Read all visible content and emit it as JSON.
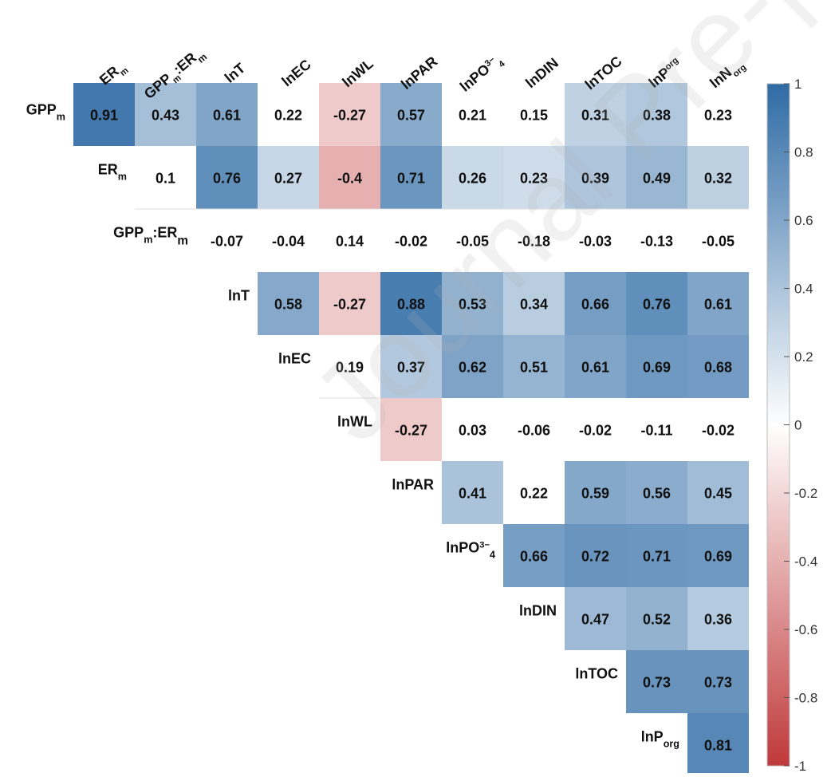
{
  "chart_data": {
    "type": "heatmap",
    "subtype": "upper-triangular correlation matrix",
    "columns": [
      {
        "base": "ER",
        "sub": "m",
        "sup": ""
      },
      {
        "base": "GPP",
        "sub": "m",
        "sup": "",
        "suffix_base": ":ER",
        "suffix_sub": "m"
      },
      {
        "base": "lnT",
        "sub": "",
        "sup": ""
      },
      {
        "base": "lnEC",
        "sub": "",
        "sup": ""
      },
      {
        "base": "lnWL",
        "sub": "",
        "sup": ""
      },
      {
        "base": "lnPAR",
        "sub": "",
        "sup": ""
      },
      {
        "base": "lnPO",
        "sub": "4",
        "sup": "3−"
      },
      {
        "base": "lnDIN",
        "sub": "",
        "sup": ""
      },
      {
        "base": "lnTOC",
        "sub": "",
        "sup": ""
      },
      {
        "base": "lnP",
        "sub": "",
        "sup": "org"
      },
      {
        "base": "lnN",
        "sub": "org",
        "sup": ""
      }
    ],
    "rows": [
      {
        "base": "GPP",
        "sub": "m"
      },
      {
        "base": "ER",
        "sub": "m"
      },
      {
        "base": "GPP",
        "sub": "m",
        "suffix_base": ":ER",
        "suffix_sub": "m"
      },
      {
        "base": "lnT",
        "sub": ""
      },
      {
        "base": "lnEC",
        "sub": ""
      },
      {
        "base": "lnWL",
        "sub": ""
      },
      {
        "base": "lnPAR",
        "sub": ""
      },
      {
        "base": "lnPO",
        "sub": "4",
        "sup": "3−"
      },
      {
        "base": "lnDIN",
        "sub": ""
      },
      {
        "base": "lnTOC",
        "sub": ""
      },
      {
        "base": "lnP",
        "sub": "org"
      }
    ],
    "values": [
      [
        0.91,
        0.43,
        0.61,
        0.22,
        -0.27,
        0.57,
        0.21,
        0.15,
        0.31,
        0.38,
        0.23
      ],
      [
        0.1,
        0.76,
        0.27,
        -0.4,
        0.71,
        0.26,
        0.23,
        0.39,
        0.49,
        0.32
      ],
      [
        -0.07,
        -0.04,
        0.14,
        -0.02,
        -0.05,
        -0.18,
        -0.03,
        -0.13,
        -0.05
      ],
      [
        0.58,
        -0.27,
        0.88,
        0.53,
        0.34,
        0.66,
        0.76,
        0.61
      ],
      [
        0.19,
        0.37,
        0.62,
        0.51,
        0.61,
        0.69,
        0.68
      ],
      [
        -0.27,
        0.03,
        -0.06,
        -0.02,
        -0.11,
        -0.02
      ],
      [
        0.41,
        0.22,
        0.59,
        0.56,
        0.45
      ],
      [
        0.66,
        0.72,
        0.71,
        0.69
      ],
      [
        0.47,
        0.52,
        0.36
      ],
      [
        0.73,
        0.73
      ],
      [
        0.81
      ]
    ],
    "significant": [
      [
        true,
        true,
        true,
        false,
        true,
        true,
        false,
        false,
        true,
        true,
        false
      ],
      [
        false,
        true,
        true,
        true,
        true,
        true,
        true,
        true,
        true,
        true
      ],
      [
        false,
        false,
        false,
        false,
        false,
        false,
        false,
        false,
        false
      ],
      [
        true,
        true,
        true,
        true,
        true,
        true,
        true,
        true
      ],
      [
        false,
        true,
        true,
        true,
        true,
        true,
        true
      ],
      [
        true,
        false,
        false,
        false,
        false,
        false
      ],
      [
        true,
        false,
        true,
        true,
        true
      ],
      [
        true,
        true,
        true,
        true
      ],
      [
        true,
        true,
        true
      ],
      [
        true,
        true
      ],
      [
        true
      ]
    ],
    "colorbar": {
      "range": [
        -1,
        1
      ],
      "ticks": [
        "1",
        "0.8",
        "0.6",
        "0.4",
        "0.2",
        "0",
        "-0.2",
        "-0.4",
        "-0.6",
        "-0.8",
        "-1"
      ],
      "color_negative": "#c0393a",
      "color_zero": "#ffffff",
      "color_positive": "#2f6ba5"
    }
  },
  "watermark": "Journal Pre-proof"
}
